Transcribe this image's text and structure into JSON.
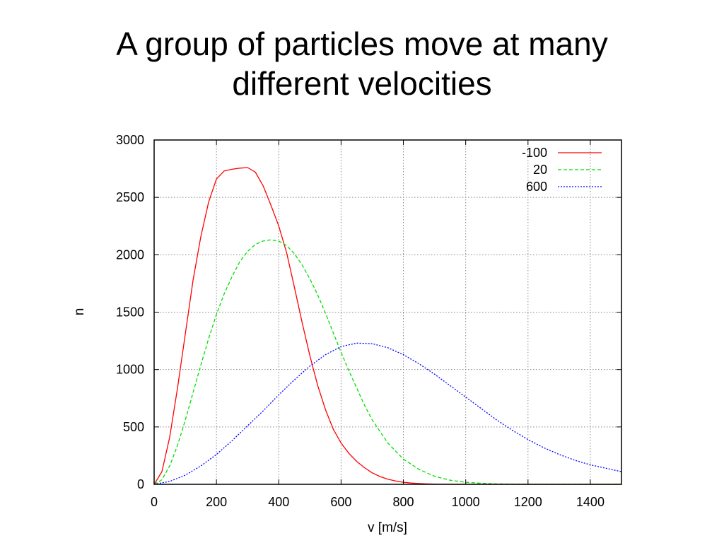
{
  "slide": {
    "title_lines": [
      "A group of particles move at many",
      "different velocities"
    ]
  },
  "chart_data": {
    "type": "line",
    "xlabel": "v [m/s]",
    "ylabel": "n",
    "xlim": [
      0,
      1500
    ],
    "ylim": [
      0,
      3000
    ],
    "xticks": [
      0,
      200,
      400,
      600,
      800,
      1000,
      1200,
      1400
    ],
    "yticks": [
      0,
      500,
      1000,
      1500,
      2000,
      2500,
      3000
    ],
    "grid": true,
    "legend_position": "top-right",
    "series": [
      {
        "name": "-100",
        "color": "#ff0000",
        "dash": "solid",
        "x": [
          0,
          25,
          50,
          75,
          100,
          125,
          150,
          175,
          200,
          225,
          250,
          275,
          300,
          325,
          350,
          375,
          400,
          425,
          450,
          475,
          500,
          525,
          550,
          575,
          600,
          625,
          650,
          675,
          700,
          725,
          750,
          775,
          800,
          825,
          850,
          875,
          900,
          925,
          950,
          975,
          1000,
          1050,
          1100,
          1150,
          1200,
          1300,
          1400,
          1500
        ],
        "y": [
          0,
          110,
          410,
          840,
          1310,
          1780,
          2160,
          2460,
          2660,
          2730,
          2745,
          2755,
          2760,
          2720,
          2600,
          2430,
          2250,
          2020,
          1720,
          1410,
          1120,
          860,
          650,
          480,
          360,
          270,
          200,
          145,
          100,
          68,
          45,
          29,
          18,
          11,
          7,
          4,
          2,
          1,
          0,
          0,
          0,
          0,
          0,
          0,
          0,
          0,
          0,
          0
        ]
      },
      {
        "name": "20",
        "color": "#00e000",
        "dash": "dashed",
        "x": [
          0,
          25,
          50,
          75,
          100,
          125,
          150,
          175,
          200,
          225,
          250,
          275,
          300,
          325,
          350,
          375,
          400,
          425,
          450,
          475,
          500,
          525,
          550,
          575,
          600,
          625,
          650,
          675,
          700,
          750,
          800,
          850,
          900,
          950,
          1000,
          1050,
          1100,
          1150,
          1200,
          1300,
          1400,
          1500
        ],
        "y": [
          0,
          40,
          160,
          340,
          560,
          800,
          1040,
          1270,
          1480,
          1660,
          1810,
          1940,
          2030,
          2090,
          2120,
          2130,
          2120,
          2080,
          2010,
          1910,
          1790,
          1650,
          1490,
          1320,
          1150,
          990,
          840,
          690,
          560,
          360,
          220,
          130,
          70,
          36,
          18,
          9,
          4,
          2,
          1,
          0,
          0,
          0
        ]
      },
      {
        "name": "600",
        "color": "#0000ff",
        "dash": "dotted",
        "x": [
          0,
          50,
          100,
          150,
          200,
          250,
          300,
          350,
          400,
          450,
          500,
          550,
          600,
          650,
          700,
          750,
          800,
          850,
          900,
          950,
          1000,
          1050,
          1100,
          1150,
          1200,
          1250,
          1300,
          1350,
          1400,
          1450,
          1500
        ],
        "y": [
          0,
          25,
          80,
          160,
          260,
          380,
          510,
          640,
          780,
          910,
          1030,
          1130,
          1200,
          1230,
          1225,
          1190,
          1130,
          1050,
          960,
          860,
          760,
          660,
          560,
          470,
          390,
          320,
          260,
          210,
          170,
          140,
          110
        ]
      }
    ]
  }
}
